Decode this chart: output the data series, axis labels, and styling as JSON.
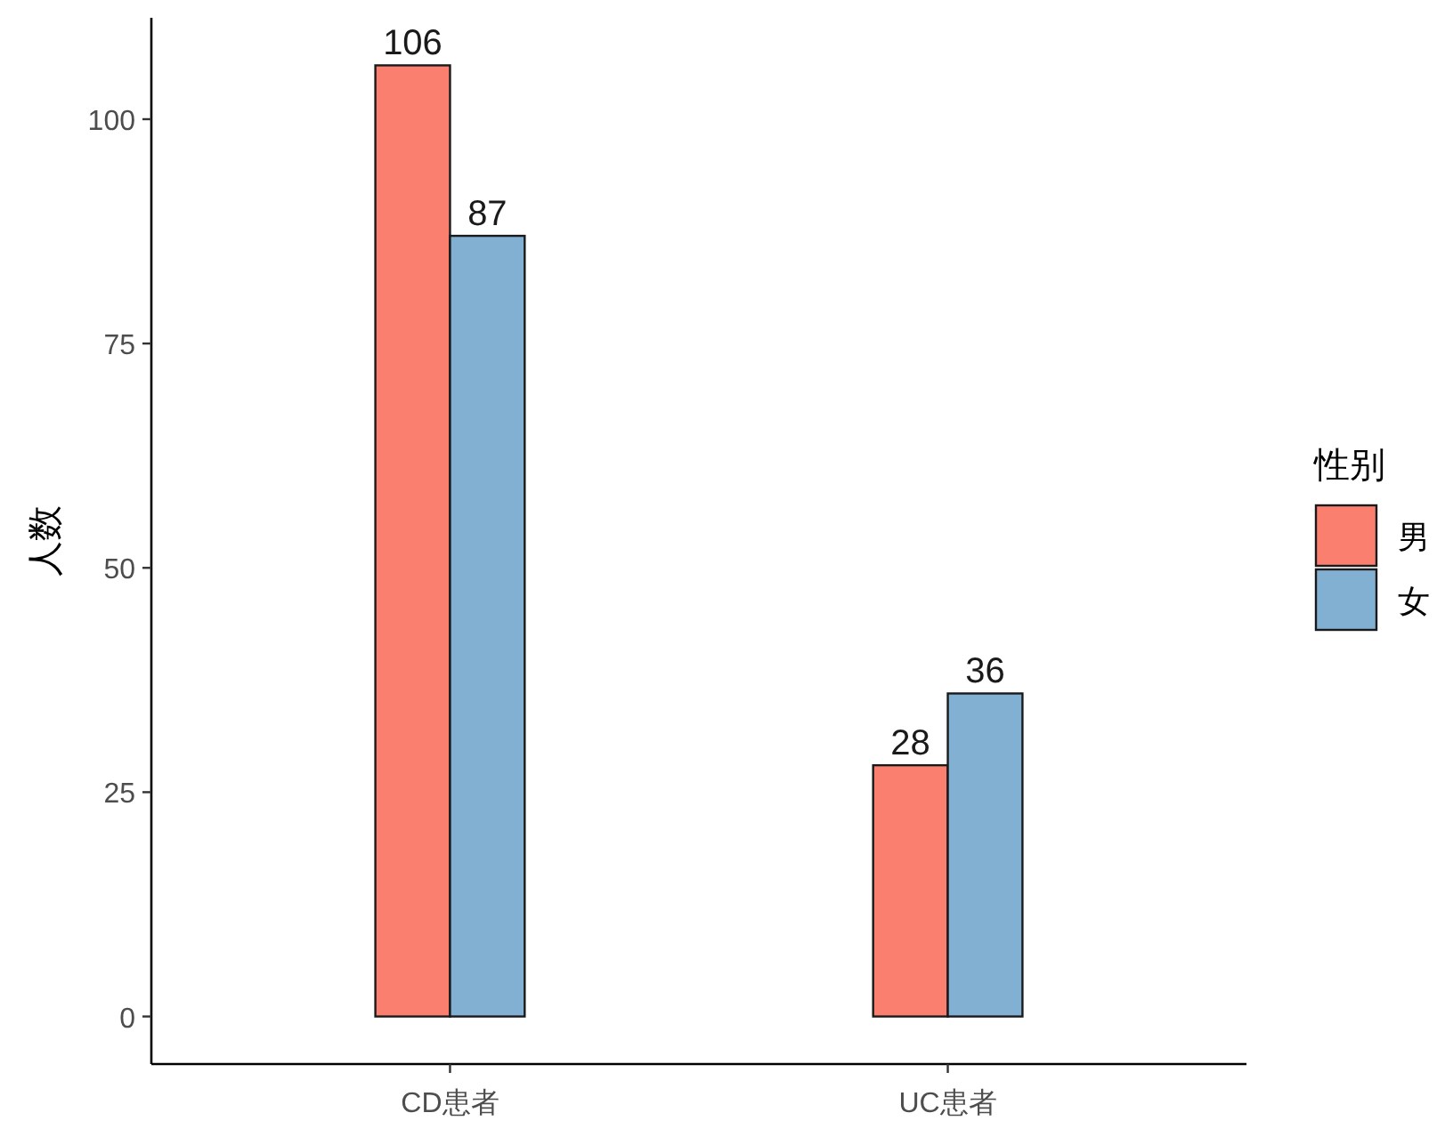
{
  "chart_data": {
    "type": "bar",
    "ylabel": "人数",
    "legend_title": "性别",
    "legend": "right",
    "categories": [
      "CD患者",
      "UC患者"
    ],
    "series": [
      {
        "name": "男",
        "color": "#fa7f6f",
        "values": [
          106,
          28
        ]
      },
      {
        "name": "女",
        "color": "#82b0d2",
        "values": [
          87,
          36
        ]
      }
    ],
    "ylim": [
      -5.3,
      111.3
    ],
    "yticks": [
      0,
      25,
      50,
      75,
      100
    ],
    "data_labels": true,
    "grid": false
  }
}
